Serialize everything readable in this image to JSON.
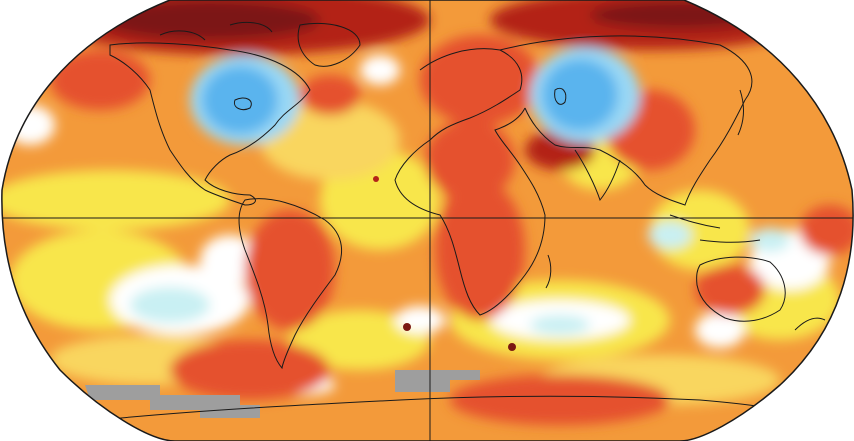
{
  "map": {
    "projection": "robinson",
    "colors": {
      "background": "#ffffff",
      "base_warm": "#f39a3a",
      "light_warm": "#f9d65e",
      "yellow": "#f8e64c",
      "pale": "#ffffff",
      "pale_blue": "#c9f0f3",
      "blue": "#5ab4ee",
      "light_blue": "#9ad8f5",
      "red": "#e5512d",
      "dark_red": "#b32418",
      "darkest_red": "#7b1912",
      "no_data": "#9e9e9e",
      "coast": "#1a1a1a"
    }
  }
}
